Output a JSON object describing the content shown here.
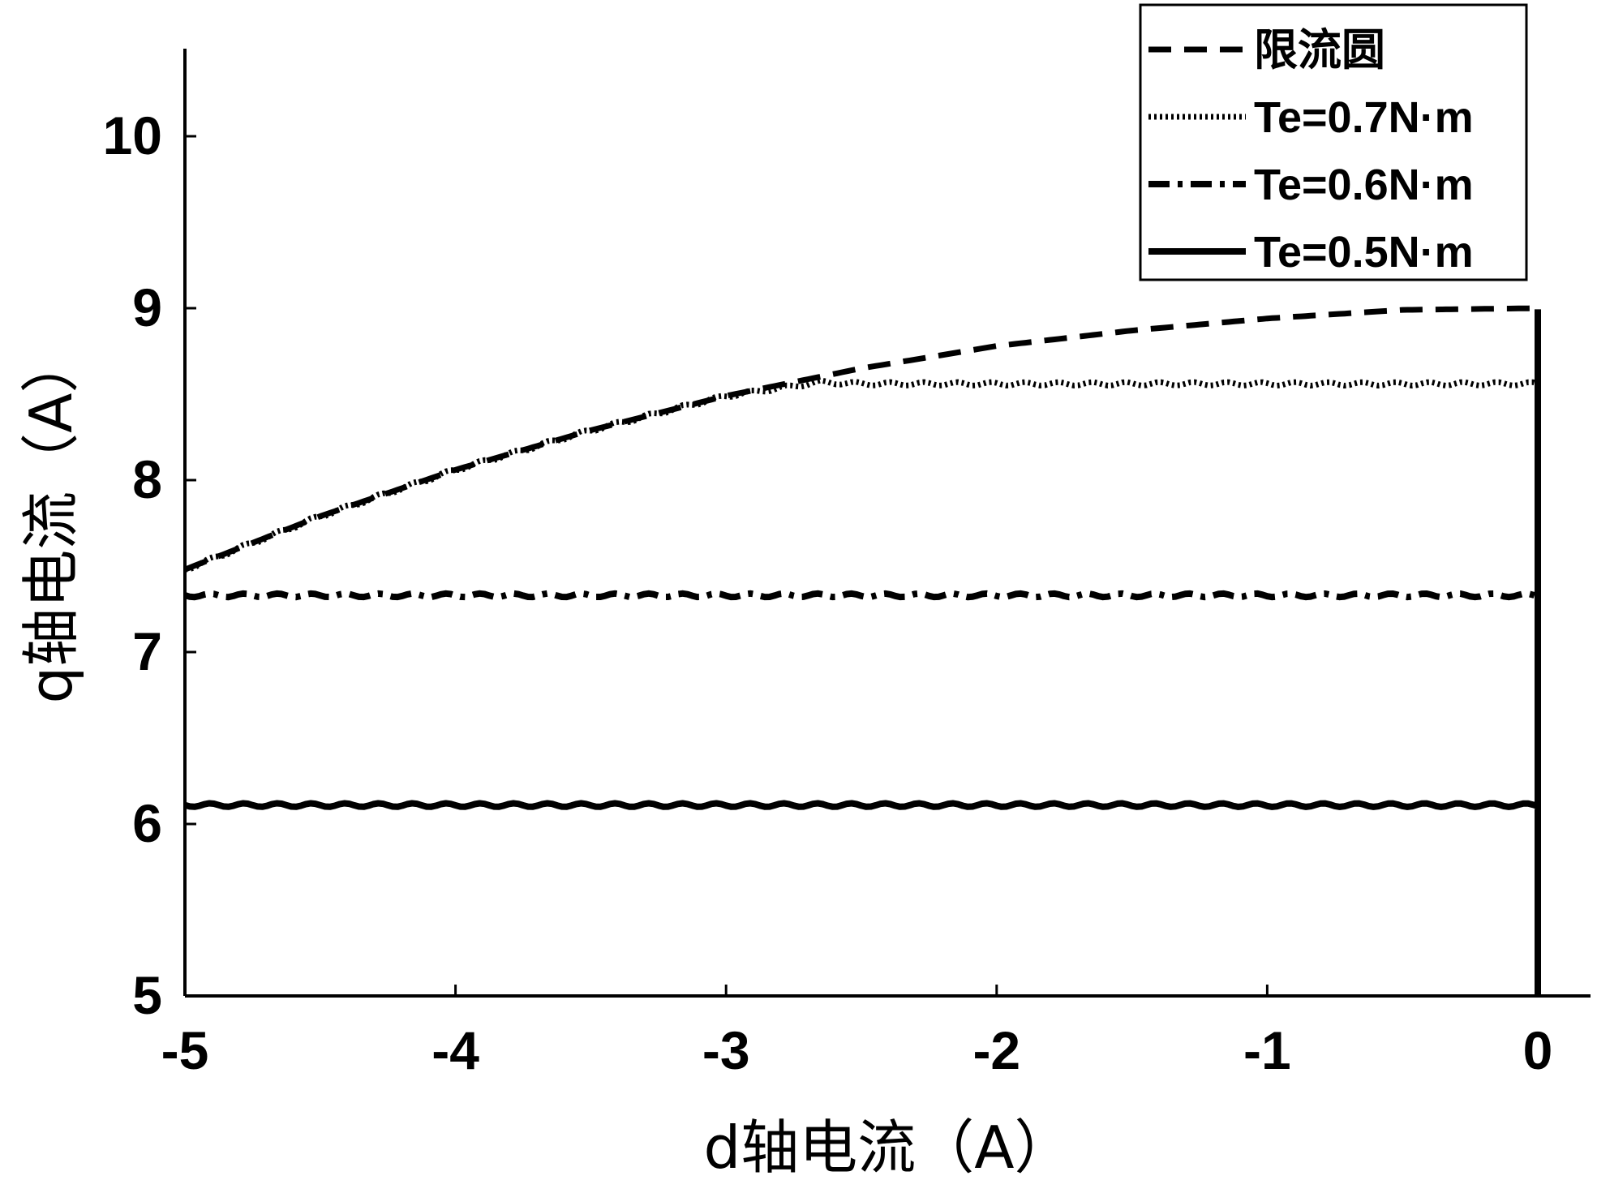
{
  "chart_data": {
    "type": "line",
    "xlabel": "d轴电流（A）",
    "ylabel": "q轴电流（A）",
    "xlim": [
      -5,
      0.2
    ],
    "ylim": [
      5,
      10.5
    ],
    "xticks": [
      "-5",
      "-4",
      "-3",
      "-2",
      "-1",
      "0"
    ],
    "yticks": [
      "5",
      "6",
      "7",
      "8",
      "9",
      "10"
    ],
    "grid": false,
    "legend_position": "top-right",
    "series": [
      {
        "name": "限流圆",
        "style": "dashed",
        "x": [
          -5,
          -4.5,
          -4.0,
          -3.5,
          -3.0,
          -2.5,
          -2.0,
          -1.5,
          -1.0,
          -0.5,
          0
        ],
        "y": [
          7.48,
          7.79,
          8.06,
          8.29,
          8.49,
          8.65,
          8.78,
          8.87,
          8.94,
          8.99,
          9.0
        ]
      },
      {
        "name": "Te=0.7N·m",
        "style": "dotted",
        "x": [
          -5,
          -4.5,
          -4.0,
          -3.5,
          -3.0,
          -2.65,
          -2.5,
          -2.0,
          -1.5,
          -1.0,
          -0.5,
          0,
          0
        ],
        "y": [
          7.48,
          7.79,
          8.06,
          8.29,
          8.49,
          8.57,
          8.56,
          8.56,
          8.56,
          8.56,
          8.56,
          8.56,
          5.0
        ]
      },
      {
        "name": "Te=0.6N·m",
        "style": "dashdot",
        "x": [
          -5,
          -4.0,
          -3.0,
          -2.0,
          -1.0,
          0,
          0
        ],
        "y": [
          7.33,
          7.33,
          7.33,
          7.33,
          7.33,
          7.33,
          5.0
        ]
      },
      {
        "name": "Te=0.5N·m",
        "style": "solid",
        "x": [
          -5,
          -4.0,
          -3.0,
          -2.0,
          -1.0,
          0,
          0,
          0
        ],
        "y": [
          6.11,
          6.11,
          6.11,
          6.11,
          6.11,
          6.11,
          5.0,
          9.0
        ]
      }
    ]
  }
}
